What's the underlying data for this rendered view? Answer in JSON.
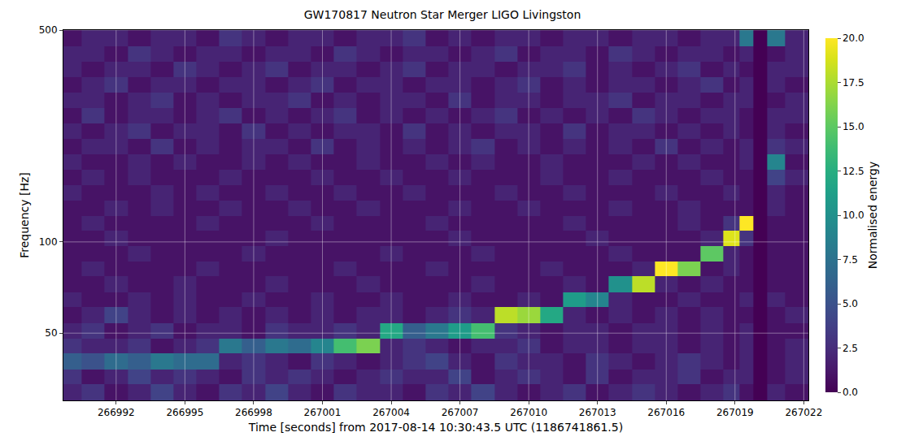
{
  "chart_data": {
    "type": "heatmap",
    "title": "GW170817 Neutron Star Merger LIGO Livingston",
    "x_label": "Time [seconds] from 2017-08-14 10:30:43.5 UTC (1186741861.5)",
    "y_label": "Frequency [Hz]",
    "color": "Viridis",
    "log": "y",
    "grid": true,
    "xlim": [
      266989.7,
      267022.2
    ],
    "ylim": [
      30,
      500
    ],
    "xticks": [
      266992,
      266995,
      266998,
      267001,
      267004,
      267007,
      267010,
      267013,
      267016,
      267019,
      267022
    ],
    "yticks": [
      50,
      100,
      500
    ],
    "x_bins": [
      266989.5,
      266990.5,
      266991.5,
      266992.5,
      266993.5,
      266994.5,
      266995.5,
      266996.5,
      266997.5,
      266998.5,
      266999.5,
      267000.5,
      267001.5,
      267002.5,
      267003.5,
      267004.5,
      267005.5,
      267006.5,
      267007.5,
      267008.5,
      267009.5,
      267010.5,
      267011.5,
      267012.5,
      267013.5,
      267014.5,
      267015.5,
      267016.5,
      267017.5,
      267018.5,
      267019.2,
      267019.8,
      267020.4,
      267021.2,
      267022.5
    ],
    "y_bins": [
      30,
      34,
      38,
      43,
      48,
      54,
      61,
      68,
      77,
      86,
      97,
      109,
      122,
      137,
      154,
      173,
      195,
      219,
      246,
      276,
      310,
      349,
      392,
      441,
      500
    ],
    "cells": [
      [
        2,
        3,
        1,
        2,
        4,
        2,
        1,
        3,
        2,
        4,
        2,
        1,
        3,
        2,
        2,
        1,
        3,
        2,
        4,
        2,
        1,
        2,
        3,
        1,
        2,
        3,
        2,
        1,
        2,
        3,
        1,
        0,
        2,
        1
      ],
      [
        3,
        1,
        2,
        4,
        2,
        3,
        2,
        1,
        3,
        2,
        3,
        2,
        1,
        2,
        3,
        2,
        2,
        4,
        1,
        2,
        3,
        2,
        1,
        3,
        1,
        2,
        2,
        3,
        1,
        2,
        2,
        0,
        1,
        2
      ],
      [
        6,
        5,
        7,
        6,
        8,
        7,
        7,
        2,
        3,
        2,
        1,
        3,
        2,
        1,
        2,
        3,
        4,
        2,
        1,
        3,
        2,
        2,
        1,
        3,
        2,
        1,
        2,
        3,
        2,
        1,
        2,
        0,
        1,
        2
      ],
      [
        3,
        2,
        2,
        3,
        1,
        2,
        3,
        8,
        6,
        8,
        7,
        9,
        14,
        16,
        2,
        3,
        2,
        1,
        2,
        2,
        3,
        1,
        2,
        2,
        1,
        2,
        2,
        1,
        2,
        1,
        2,
        0,
        1,
        2
      ],
      [
        2,
        3,
        1,
        2,
        3,
        1,
        2,
        2,
        1,
        3,
        2,
        2,
        3,
        2,
        12,
        6,
        8,
        11,
        14,
        3,
        2,
        1,
        2,
        2,
        1,
        2,
        2,
        1,
        2,
        1,
        2,
        0,
        1,
        1
      ],
      [
        1,
        2,
        4,
        2,
        1,
        2,
        1,
        2,
        1,
        2,
        1,
        2,
        1,
        2,
        2,
        1,
        2,
        3,
        2,
        18,
        17,
        12,
        2,
        1,
        2,
        1,
        2,
        1,
        2,
        1,
        1,
        0,
        1,
        2
      ],
      [
        2,
        1,
        1,
        2,
        1,
        2,
        1,
        1,
        2,
        1,
        1,
        2,
        1,
        1,
        2,
        1,
        1,
        2,
        1,
        1,
        2,
        1,
        11,
        9,
        2,
        1,
        1,
        2,
        1,
        1,
        2,
        0,
        2,
        1
      ],
      [
        1,
        1,
        2,
        1,
        1,
        2,
        1,
        1,
        1,
        2,
        1,
        1,
        1,
        2,
        1,
        1,
        1,
        1,
        2,
        1,
        1,
        1,
        2,
        1,
        10,
        18,
        2,
        1,
        2,
        1,
        1,
        0,
        1,
        1
      ],
      [
        1,
        2,
        1,
        1,
        1,
        1,
        2,
        1,
        1,
        1,
        1,
        1,
        2,
        1,
        1,
        1,
        2,
        1,
        1,
        1,
        1,
        2,
        1,
        1,
        1,
        2,
        20,
        16,
        1,
        2,
        1,
        0,
        1,
        1
      ],
      [
        1,
        1,
        1,
        2,
        1,
        1,
        1,
        1,
        2,
        1,
        1,
        1,
        1,
        1,
        2,
        1,
        1,
        1,
        2,
        1,
        1,
        1,
        1,
        1,
        2,
        1,
        1,
        1,
        15,
        2,
        1,
        0,
        1,
        1
      ],
      [
        1,
        1,
        2,
        1,
        1,
        1,
        1,
        1,
        1,
        2,
        1,
        1,
        1,
        1,
        1,
        1,
        1,
        2,
        1,
        1,
        1,
        1,
        1,
        2,
        1,
        1,
        1,
        1,
        2,
        19,
        3,
        0,
        1,
        1
      ],
      [
        1,
        2,
        1,
        1,
        1,
        1,
        2,
        1,
        1,
        1,
        1,
        2,
        1,
        1,
        1,
        1,
        2,
        1,
        1,
        1,
        1,
        1,
        2,
        1,
        1,
        1,
        1,
        2,
        1,
        3,
        20,
        0,
        1,
        1
      ],
      [
        1,
        1,
        2,
        1,
        2,
        1,
        1,
        2,
        1,
        1,
        2,
        1,
        1,
        2,
        1,
        1,
        1,
        2,
        1,
        1,
        2,
        1,
        1,
        1,
        2,
        1,
        1,
        2,
        1,
        1,
        1,
        0,
        2,
        1
      ],
      [
        2,
        1,
        1,
        1,
        2,
        1,
        2,
        1,
        1,
        2,
        1,
        1,
        2,
        1,
        1,
        2,
        1,
        1,
        1,
        2,
        1,
        1,
        2,
        1,
        1,
        1,
        2,
        1,
        1,
        2,
        1,
        0,
        2,
        1
      ],
      [
        1,
        2,
        1,
        2,
        1,
        1,
        1,
        2,
        1,
        1,
        1,
        2,
        1,
        1,
        2,
        1,
        1,
        2,
        1,
        1,
        1,
        2,
        1,
        1,
        2,
        1,
        1,
        1,
        2,
        1,
        1,
        0,
        4,
        2
      ],
      [
        2,
        1,
        1,
        2,
        1,
        2,
        1,
        1,
        2,
        1,
        2,
        1,
        1,
        2,
        1,
        1,
        2,
        1,
        2,
        1,
        1,
        2,
        1,
        1,
        1,
        2,
        1,
        2,
        1,
        1,
        2,
        0,
        9,
        1
      ],
      [
        1,
        2,
        2,
        1,
        3,
        1,
        2,
        1,
        2,
        2,
        1,
        3,
        1,
        2,
        1,
        2,
        1,
        2,
        3,
        1,
        2,
        1,
        2,
        1,
        2,
        1,
        3,
        1,
        2,
        1,
        2,
        0,
        3,
        2
      ],
      [
        2,
        1,
        2,
        3,
        1,
        2,
        2,
        1,
        3,
        1,
        2,
        1,
        2,
        2,
        1,
        3,
        1,
        2,
        1,
        2,
        2,
        1,
        3,
        1,
        2,
        2,
        1,
        2,
        1,
        2,
        1,
        0,
        2,
        1
      ],
      [
        1,
        3,
        1,
        2,
        2,
        1,
        2,
        3,
        1,
        2,
        1,
        2,
        3,
        1,
        2,
        1,
        2,
        1,
        2,
        3,
        1,
        2,
        1,
        2,
        1,
        3,
        2,
        1,
        2,
        2,
        1,
        0,
        2,
        2
      ],
      [
        2,
        2,
        1,
        2,
        3,
        1,
        2,
        1,
        2,
        2,
        3,
        1,
        2,
        1,
        2,
        2,
        1,
        3,
        1,
        2,
        2,
        1,
        2,
        2,
        3,
        1,
        2,
        2,
        1,
        2,
        2,
        0,
        1,
        2
      ],
      [
        1,
        2,
        3,
        1,
        2,
        2,
        1,
        2,
        2,
        1,
        2,
        3,
        1,
        2,
        2,
        1,
        2,
        2,
        1,
        2,
        3,
        1,
        2,
        1,
        2,
        2,
        1,
        2,
        3,
        1,
        2,
        0,
        2,
        1
      ],
      [
        2,
        1,
        2,
        2,
        1,
        3,
        2,
        1,
        2,
        3,
        1,
        2,
        2,
        1,
        2,
        3,
        1,
        2,
        2,
        1,
        2,
        2,
        3,
        1,
        2,
        1,
        2,
        3,
        1,
        2,
        1,
        0,
        2,
        2
      ],
      [
        2,
        2,
        1,
        3,
        2,
        1,
        2,
        2,
        1,
        2,
        2,
        1,
        3,
        2,
        1,
        2,
        2,
        1,
        2,
        3,
        1,
        2,
        2,
        1,
        3,
        2,
        1,
        2,
        2,
        1,
        2,
        0,
        1,
        2
      ],
      [
        1,
        2,
        2,
        1,
        2,
        2,
        1,
        3,
        2,
        1,
        2,
        2,
        1,
        2,
        2,
        3,
        1,
        2,
        1,
        2,
        2,
        1,
        2,
        2,
        1,
        2,
        2,
        1,
        2,
        2,
        8,
        0,
        8,
        2
      ]
    ],
    "colorbar": {
      "title": "Normalised energy",
      "range": [
        0,
        20
      ],
      "ticks": [
        {
          "value": 0,
          "label": "0.0"
        },
        {
          "value": 2.5,
          "label": "2.5"
        },
        {
          "value": 5,
          "label": "5.0"
        },
        {
          "value": 7.5,
          "label": "7.5"
        },
        {
          "value": 10,
          "label": "10.0"
        },
        {
          "value": 12.5,
          "label": "12.5"
        },
        {
          "value": 15,
          "label": "15.0"
        },
        {
          "value": 17.5,
          "label": "17.5"
        },
        {
          "value": 20,
          "label": "20.0"
        }
      ]
    }
  }
}
